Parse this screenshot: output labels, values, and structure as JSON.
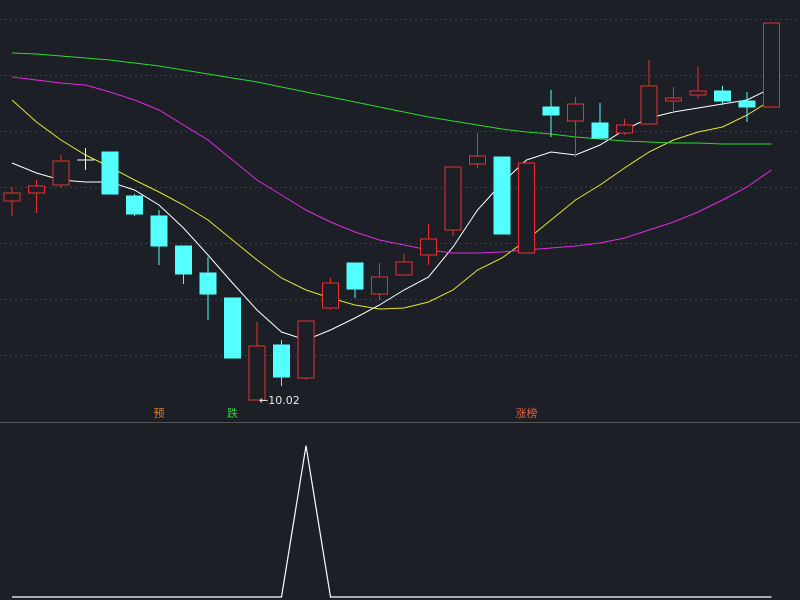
{
  "chart_data": {
    "type": "candlestick",
    "up_color": "#e8312f",
    "down_color": "#54ffff",
    "flat_color": "#ffffff",
    "ylim": [
      9.82,
      14.02
    ],
    "yticks": [
      10.47,
      11.03,
      11.59,
      12.15,
      12.71,
      13.27,
      13.83
    ],
    "grid": true,
    "open": [
      12.01,
      12.09,
      12.17,
      12.42,
      12.5,
      12.06,
      11.86,
      11.56,
      11.29,
      11.04,
      10.02,
      10.57,
      10.24,
      10.94,
      11.39,
      11.08,
      11.27,
      11.47,
      11.72,
      12.38,
      12.45,
      11.49,
      12.95,
      12.81,
      12.79,
      12.69,
      12.78,
      13.01,
      13.07,
      13.11,
      13.01,
      12.95
    ],
    "high": [
      12.15,
      12.22,
      12.47,
      12.54,
      12.5,
      12.08,
      11.92,
      11.56,
      11.45,
      11.04,
      10.8,
      10.62,
      10.81,
      11.24,
      11.39,
      11.39,
      11.48,
      11.78,
      12.35,
      12.69,
      12.45,
      12.39,
      13.12,
      13.05,
      12.99,
      12.83,
      13.42,
      13.15,
      13.35,
      13.16,
      13.1,
      13.79
    ],
    "low": [
      11.86,
      11.89,
      12.14,
      12.32,
      12.08,
      11.86,
      11.37,
      11.18,
      10.82,
      10.44,
      10.02,
      10.16,
      10.22,
      10.92,
      11.04,
      11.02,
      11.26,
      11.37,
      11.66,
      12.34,
      11.68,
      11.49,
      12.65,
      12.45,
      12.64,
      12.67,
      12.78,
      12.9,
      13.03,
      12.97,
      12.8,
      12.95
    ],
    "close": [
      12.09,
      12.16,
      12.41,
      12.42,
      12.08,
      11.88,
      11.56,
      11.28,
      11.08,
      10.44,
      10.56,
      10.25,
      10.81,
      11.19,
      11.13,
      11.25,
      11.4,
      11.63,
      12.35,
      12.46,
      11.68,
      12.39,
      12.87,
      12.98,
      12.64,
      12.77,
      13.16,
      13.04,
      13.11,
      13.01,
      12.95,
      13.79
    ],
    "series": [
      {
        "color": "#ffffff",
        "values": [
          12.39,
          12.29,
          12.22,
          12.2,
          12.2,
          12.12,
          11.97,
          11.74,
          11.47,
          11.19,
          10.92,
          10.7,
          10.62,
          10.72,
          10.84,
          10.97,
          11.12,
          11.25,
          11.55,
          11.92,
          12.19,
          12.42,
          12.5,
          12.47,
          12.57,
          12.72,
          12.84,
          12.9,
          12.94,
          12.98,
          13.02,
          13.14
        ]
      },
      {
        "color": "#e6e62a",
        "values": [
          13.02,
          12.8,
          12.62,
          12.47,
          12.35,
          12.22,
          12.1,
          11.97,
          11.82,
          11.62,
          11.42,
          11.24,
          11.12,
          11.04,
          10.97,
          10.93,
          10.94,
          11.0,
          11.12,
          11.32,
          11.44,
          11.62,
          11.82,
          12.02,
          12.17,
          12.34,
          12.5,
          12.62,
          12.7,
          12.75,
          12.87,
          13.02
        ]
      },
      {
        "color": "#e02be0",
        "values": [
          13.25,
          13.22,
          13.19,
          13.17,
          13.1,
          13.02,
          12.92,
          12.77,
          12.62,
          12.42,
          12.22,
          12.07,
          11.92,
          11.8,
          11.7,
          11.62,
          11.57,
          11.52,
          11.49,
          11.49,
          11.5,
          11.52,
          11.54,
          11.56,
          11.59,
          11.64,
          11.72,
          11.8,
          11.9,
          12.02,
          12.15,
          12.32
        ]
      },
      {
        "color": "#2ed82e",
        "values": [
          13.49,
          13.48,
          13.46,
          13.44,
          13.42,
          13.39,
          13.36,
          13.32,
          13.28,
          13.24,
          13.2,
          13.15,
          13.1,
          13.05,
          13.0,
          12.95,
          12.9,
          12.85,
          12.81,
          12.77,
          12.73,
          12.7,
          12.68,
          12.65,
          12.63,
          12.61,
          12.6,
          12.59,
          12.59,
          12.58,
          12.58,
          12.58
        ]
      }
    ],
    "low_marker": {
      "label": "←10.02",
      "value": 10.02
    },
    "signals": [
      null,
      null,
      null,
      null,
      null,
      null,
      {
        "text": "预",
        "color": "#d9822b"
      },
      null,
      null,
      {
        "text": "跌",
        "color": "#3ad13a"
      },
      null,
      null,
      null,
      null,
      null,
      null,
      null,
      null,
      null,
      null,
      null,
      {
        "text": "涨榜",
        "color": "#e06040"
      },
      null,
      null,
      null,
      null,
      null,
      null,
      null,
      null,
      null,
      null
    ],
    "indicator": {
      "color": "#ffffff",
      "ylim": [
        0,
        1.15
      ],
      "values": [
        0,
        0,
        0,
        0,
        0,
        0,
        0,
        0,
        0,
        0,
        0,
        0,
        1,
        0,
        0,
        0,
        0,
        0,
        0,
        0,
        0,
        0,
        0,
        0,
        0,
        0,
        0,
        0,
        0,
        0,
        0,
        0
      ]
    }
  }
}
